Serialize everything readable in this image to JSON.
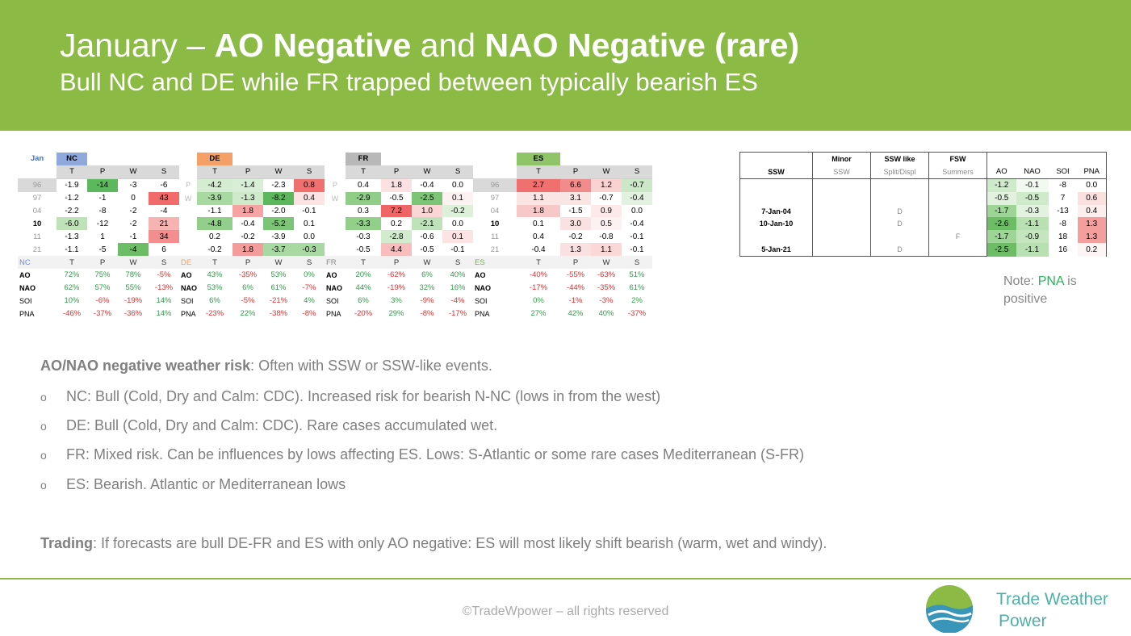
{
  "header": {
    "title_pre": "January – ",
    "title_b1": "AO Negative",
    "title_mid": " and ",
    "title_b2": "NAO Negative (rare)",
    "subtitle": "Bull NC and DE while FR trapped between typically bearish ES"
  },
  "colors": {
    "header_bg": "#8bba45",
    "positive": "#2e9e48",
    "negative": "#e03030",
    "nc_head": "#8fa9dc",
    "de_head": "#f4a066",
    "fr_head": "#b8b8b8",
    "es_head": "#8fc469"
  },
  "matrix": {
    "corner": "Jan",
    "groups": [
      {
        "code": "NC",
        "color": "#8fa9dc",
        "cols": [
          "T",
          "P",
          "W",
          "S"
        ],
        "corr_label": "NC",
        "corr_color": "#6b8fd6"
      },
      {
        "code": "DE",
        "color": "#f4a066",
        "cols": [
          "T",
          "P",
          "W",
          "S"
        ],
        "corr_label": "DE",
        "corr_color": "#f0a060"
      },
      {
        "code": "FR",
        "color": "#b8b8b8",
        "cols": [
          "T",
          "P",
          "W",
          "S"
        ],
        "corr_label": "FR",
        "corr_color": "#888888"
      },
      {
        "code": "ES",
        "color": "#8fc469",
        "cols": [
          "T",
          "P",
          "W",
          "S"
        ],
        "corr_label": "ES",
        "corr_color": "#6fb04a"
      }
    ],
    "sep_labels": [
      "P",
      "W"
    ],
    "rows": [
      {
        "year": "96",
        "bold": false,
        "es_label": "96",
        "sep": "P",
        "values": [
          [
            "-1.9",
            "-14",
            "-3",
            "-6"
          ],
          [
            "-4.2",
            "-1.4",
            "-2.3",
            "0.8"
          ],
          [
            "0.4",
            "1.8",
            "-0.4",
            "0.0"
          ],
          [
            "2.7",
            "6.6",
            "1.2",
            "-0.7"
          ]
        ]
      },
      {
        "year": "97",
        "bold": false,
        "es_label": "97",
        "sep": "W",
        "values": [
          [
            "-1.2",
            "-1",
            "0",
            "43"
          ],
          [
            "-3.9",
            "-1.3",
            "-8.2",
            "0.4"
          ],
          [
            "-2.9",
            "-0.5",
            "-2.5",
            "0.1"
          ],
          [
            "1.1",
            "3.1",
            "-0.7",
            "-0.4"
          ]
        ]
      },
      {
        "year": "04",
        "bold": false,
        "es_label": "04",
        "sep": "",
        "values": [
          [
            "-2.2",
            "-8",
            "-2",
            "-4"
          ],
          [
            "-1.1",
            "1.8",
            "-2.0",
            "-0.1"
          ],
          [
            "0.3",
            "7.2",
            "1.0",
            "-0.2"
          ],
          [
            "1.8",
            "-1.5",
            "0.9",
            "0.0"
          ]
        ]
      },
      {
        "year": "10",
        "bold": true,
        "es_label": "10",
        "sep": "",
        "values": [
          [
            "-6.0",
            "-12",
            "-2",
            "21"
          ],
          [
            "-4.8",
            "-0.4",
            "-5.2",
            "0.1"
          ],
          [
            "-3.3",
            "0.2",
            "-2.1",
            "0.0"
          ],
          [
            "0.1",
            "3.0",
            "0.5",
            "-0.4"
          ]
        ]
      },
      {
        "year": "11",
        "bold": false,
        "es_label": "11",
        "sep": "",
        "values": [
          [
            "-1.3",
            "1",
            "-1",
            "34"
          ],
          [
            "0.2",
            "-0.2",
            "-3.9",
            "0.0"
          ],
          [
            "-0.3",
            "-2.8",
            "-0.6",
            "0.1"
          ],
          [
            "0.4",
            "-0.2",
            "-0.8",
            "-0.1"
          ]
        ]
      },
      {
        "year": "21",
        "bold": false,
        "es_label": "21",
        "sep": "",
        "values": [
          [
            "-1.1",
            "-5",
            "-4",
            "6"
          ],
          [
            "-0.2",
            "1.8",
            "-3.7",
            "-0.3"
          ],
          [
            "-0.5",
            "4.4",
            "-0.5",
            "-0.1"
          ],
          [
            "-0.4",
            "1.3",
            "1.1",
            "-0.1"
          ]
        ]
      }
    ],
    "cell_colors": [
      [
        [
          "#ffffff",
          "#5cb85c",
          "#ffffff",
          "#ffffff"
        ],
        [
          "#d6ecd2",
          "#d9eed6",
          "#ffffff",
          "#f07070"
        ],
        [
          "#ffffff",
          "#fbe1e1",
          "#ffffff",
          "#ffffff"
        ],
        [
          "#f07070",
          "#f28b8b",
          "#fbd2d2",
          "#cbe7c7"
        ]
      ],
      [
        [
          "#ffffff",
          "#ffffff",
          "#ffffff",
          "#f26a6a"
        ],
        [
          "#a8d9a0",
          "#cfe9cb",
          "#5db85d",
          "#fde3e3"
        ],
        [
          "#8fcd88",
          "#ffffff",
          "#7cc476",
          "#fdf2f2"
        ],
        [
          "#fbe4e4",
          "#fae5e5",
          "#ffffff",
          "#e3f2e0"
        ]
      ],
      [
        [
          "#ffffff",
          "#ffffff",
          "#ffffff",
          "#ffffff"
        ],
        [
          "#ffffff",
          "#f5a3a3",
          "#ffffff",
          "#ffffff"
        ],
        [
          "#ffffff",
          "#ef6464",
          "#fbd6d6",
          "#ddf0da"
        ],
        [
          "#f8c8c8",
          "#ffffff",
          "#fde9e9",
          "#ffffff"
        ]
      ],
      [
        [
          "#bfe2b9",
          "#ffffff",
          "#ffffff",
          "#f7b2b2"
        ],
        [
          "#92cf8a",
          "#ffffff",
          "#7cc476",
          "#ffffff"
        ],
        [
          "#92cf8a",
          "#ffffff",
          "#c0e2bb",
          "#ffffff"
        ],
        [
          "#ffffff",
          "#fbe2e2",
          "#fdf2f2",
          "#ffffff"
        ]
      ],
      [
        [
          "#ffffff",
          "#ffffff",
          "#ffffff",
          "#f48e8e"
        ],
        [
          "#ffffff",
          "#ffffff",
          "#ffffff",
          "#ffffff"
        ],
        [
          "#ffffff",
          "#d2ebce",
          "#ffffff",
          "#fde4e4"
        ],
        [
          "#ffffff",
          "#ffffff",
          "#ffffff",
          "#ffffff"
        ]
      ],
      [
        [
          "#ffffff",
          "#ffffff",
          "#6dbd67",
          "#ffffff"
        ],
        [
          "#ffffff",
          "#f49c9c",
          "#a9d9a2",
          "#a9d9a2"
        ],
        [
          "#ffffff",
          "#f9bdbd",
          "#ffffff",
          "#ffffff"
        ],
        [
          "#ffffff",
          "#fae0e0",
          "#fbd8d8",
          "#ffffff"
        ]
      ]
    ],
    "corr_rows": [
      {
        "label": "AO",
        "bold": true,
        "values": [
          [
            "72%",
            "75%",
            "78%",
            "-5%"
          ],
          [
            "43%",
            "-35%",
            "53%",
            "0%"
          ],
          [
            "20%",
            "-62%",
            "6%",
            "40%"
          ],
          [
            "-40%",
            "-55%",
            "-63%",
            "51%"
          ]
        ]
      },
      {
        "label": "NAO",
        "bold": true,
        "values": [
          [
            "62%",
            "57%",
            "55%",
            "-13%"
          ],
          [
            "53%",
            "6%",
            "61%",
            "-7%"
          ],
          [
            "44%",
            "-19%",
            "32%",
            "16%"
          ],
          [
            "-17%",
            "-44%",
            "-35%",
            "61%"
          ]
        ]
      },
      {
        "label": "SOI",
        "bold": false,
        "values": [
          [
            "10%",
            "-6%",
            "-19%",
            "14%"
          ],
          [
            "6%",
            "-5%",
            "-21%",
            "4%"
          ],
          [
            "6%",
            "3%",
            "-9%",
            "-4%"
          ],
          [
            "0%",
            "-1%",
            "-3%",
            "2%"
          ]
        ]
      },
      {
        "label": "PNA",
        "bold": false,
        "values": [
          [
            "-46%",
            "-37%",
            "-36%",
            "14%"
          ],
          [
            "-23%",
            "22%",
            "-38%",
            "-8%"
          ],
          [
            "-20%",
            "29%",
            "-8%",
            "-17%"
          ],
          [
            "27%",
            "42%",
            "40%",
            "-37%"
          ]
        ]
      }
    ]
  },
  "ssw_table": {
    "head1": [
      "",
      "Minor",
      "SSW like",
      "FSW"
    ],
    "head2": [
      "SSW",
      "SSW",
      "Split/Displ",
      "Summers"
    ],
    "idx_head": [
      "AO",
      "NAO",
      "SOI",
      "PNA"
    ],
    "rows": [
      {
        "date": "",
        "minor": "",
        "like": "",
        "fsw": "",
        "idx": [
          "-1.2",
          "-0.1",
          "-8",
          "0.0"
        ]
      },
      {
        "date": "",
        "minor": "",
        "like": "",
        "fsw": "",
        "idx": [
          "-0.5",
          "-0.5",
          "7",
          "0.6"
        ]
      },
      {
        "date": "7-Jan-04",
        "minor": "",
        "like": "D",
        "fsw": "",
        "idx": [
          "-1.7",
          "-0.3",
          "-13",
          "0.4"
        ]
      },
      {
        "date": "10-Jan-10",
        "minor": "",
        "like": "D",
        "fsw": "",
        "idx": [
          "-2.6",
          "-1.1",
          "-8",
          "1.3"
        ]
      },
      {
        "date": "",
        "minor": "",
        "like": "",
        "fsw": "F",
        "idx": [
          "-1.7",
          "-0.9",
          "18",
          "1.3"
        ]
      },
      {
        "date": "5-Jan-21",
        "minor": "",
        "like": "D",
        "fsw": "",
        "idx": [
          "-2.5",
          "-1.1",
          "16",
          "0.2"
        ]
      }
    ],
    "idx_colors": [
      [
        "#cfe9cb",
        "#f2f9f1",
        "#ffffff",
        "#ffffff"
      ],
      [
        "#e2f2df",
        "#cfe9cb",
        "#ffffff",
        "#fbe0e0"
      ],
      [
        "#9fd497",
        "#e2f2df",
        "#ffffff",
        "#fdeeee"
      ],
      [
        "#6dbd67",
        "#b9e0b3",
        "#ffffff",
        "#f59e9e"
      ],
      [
        "#9fd497",
        "#c4e5be",
        "#ffffff",
        "#f59e9e"
      ],
      [
        "#6dbd67",
        "#b9e0b3",
        "#ffffff",
        "#fdf5f5"
      ]
    ]
  },
  "note": {
    "pre": "Note: ",
    "highlight": "PNA",
    "post": " is positive"
  },
  "body": {
    "risk_bold": "AO/NAO negative weather risk",
    "risk_text": ": Often with SSW or SSW-like events.",
    "bullet_mark": "o",
    "bullets": [
      "NC: Bull (Cold, Dry and Calm: CDC). Increased risk for bearish N-NC (lows in from the west)",
      "DE: Bull (Cold, Dry and Calm: CDC). Rare cases accumulated wet.",
      "FR: Mixed risk. Can be influences by lows affecting ES. Lows: S-Atlantic or some rare cases Mediterranean (S-FR)",
      "ES: Bearish. Atlantic or Mediterranean lows"
    ],
    "trading_bold": "Trading",
    "trading_text": ": If forecasts are bull DE-FR and ES with only AO negative: ES will most likely shift bearish (warm, wet and windy)."
  },
  "footer": {
    "copyright": "©TradeWpower – all rights reserved",
    "logo_line1": "Trade Weather",
    "logo_line2": "Power",
    "logo_icon": "wave-globe-logo"
  }
}
